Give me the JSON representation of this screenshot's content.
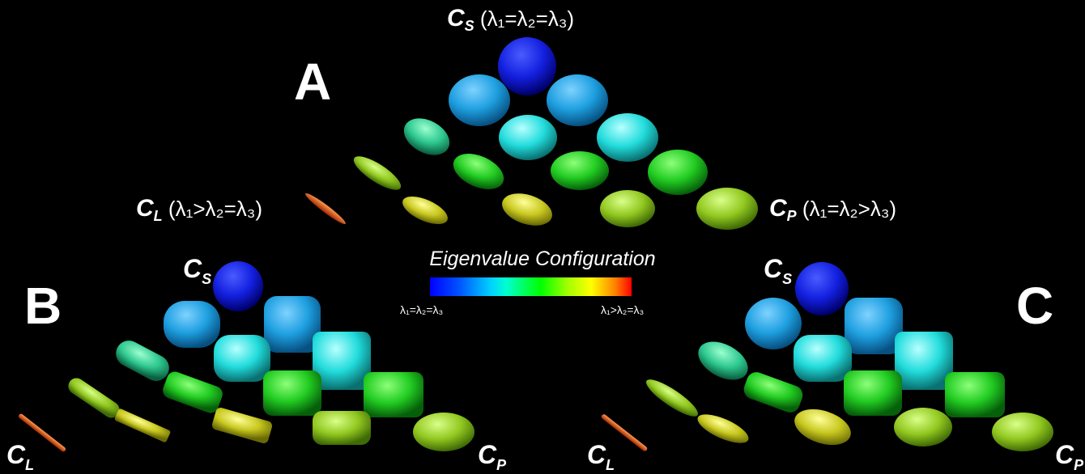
{
  "panels": {
    "a": "A",
    "b": "B",
    "c": "C"
  },
  "labels": {
    "cs_main": "C",
    "cs_main_sub": "S",
    "cs_main_rel": "(λ₁=λ₂=λ₃)",
    "cl_main": "C",
    "cl_main_sub": "L",
    "cl_main_rel": "(λ₁>λ₂=λ₃)",
    "cp_main": "C",
    "cp_main_sub": "P",
    "cp_main_rel": "(λ₁=λ₂>λ₃)",
    "cs_b": "C",
    "cs_b_sub": "S",
    "cl_b": "C",
    "cl_b_sub": "L",
    "cp_b": "C",
    "cp_b_sub": "P",
    "cs_c": "C",
    "cs_c_sub": "S",
    "cl_c": "C",
    "cl_c_sub": "L",
    "cp_c": "C",
    "cp_c_sub": "P"
  },
  "colorbar": {
    "title": "Eigenvalue Configuration",
    "left_label": "λ₁=λ₂=λ₃",
    "right_label": "λ₁>λ₂=λ₃",
    "colors": [
      "#0000ff",
      "#00d0ff",
      "#00ff50",
      "#a0ff00",
      "#ffff00",
      "#ff0000"
    ]
  }
}
